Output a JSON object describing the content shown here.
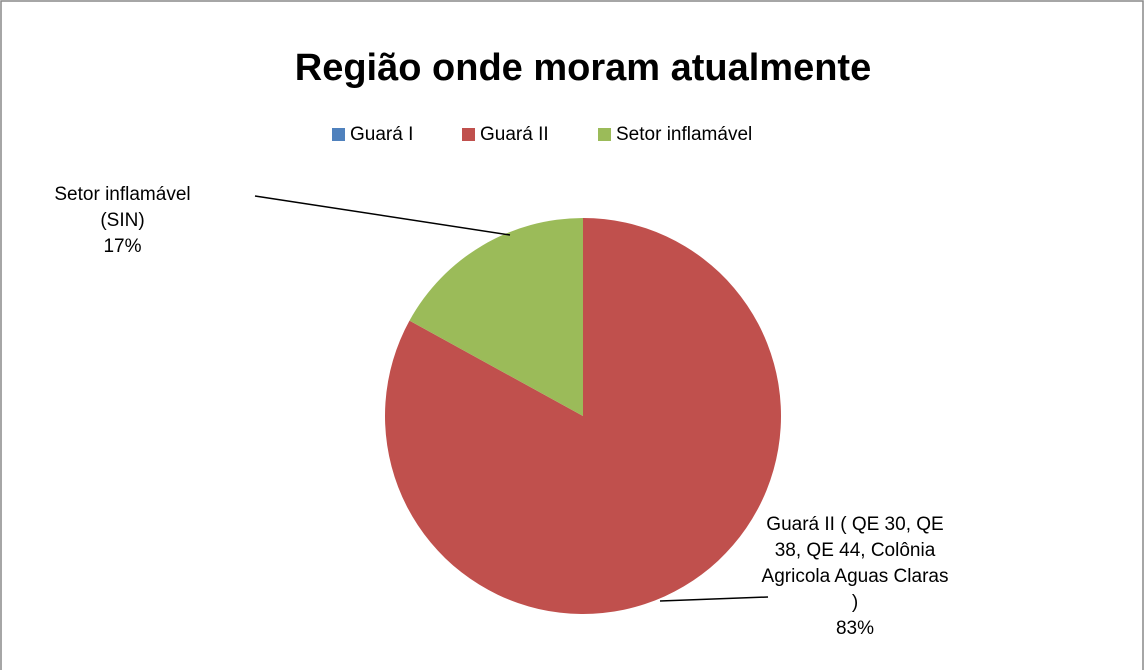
{
  "chart_data": {
    "type": "pie",
    "title": "Região onde moram atualmente",
    "categories": [
      "Guará I",
      "Guará II",
      "Setor inflamável"
    ],
    "values": [
      0,
      83,
      17
    ],
    "colors": [
      "#4f81bd",
      "#c0504d",
      "#9bbb59"
    ],
    "data_label_names": [
      null,
      "Guará II ( QE 30, QE 38, QE 44, Colônia Agricola Aguas Claras )",
      "Setor inflamável (SIN)"
    ],
    "value_labels": [
      null,
      "83%",
      "17%"
    ],
    "legend": "top"
  }
}
